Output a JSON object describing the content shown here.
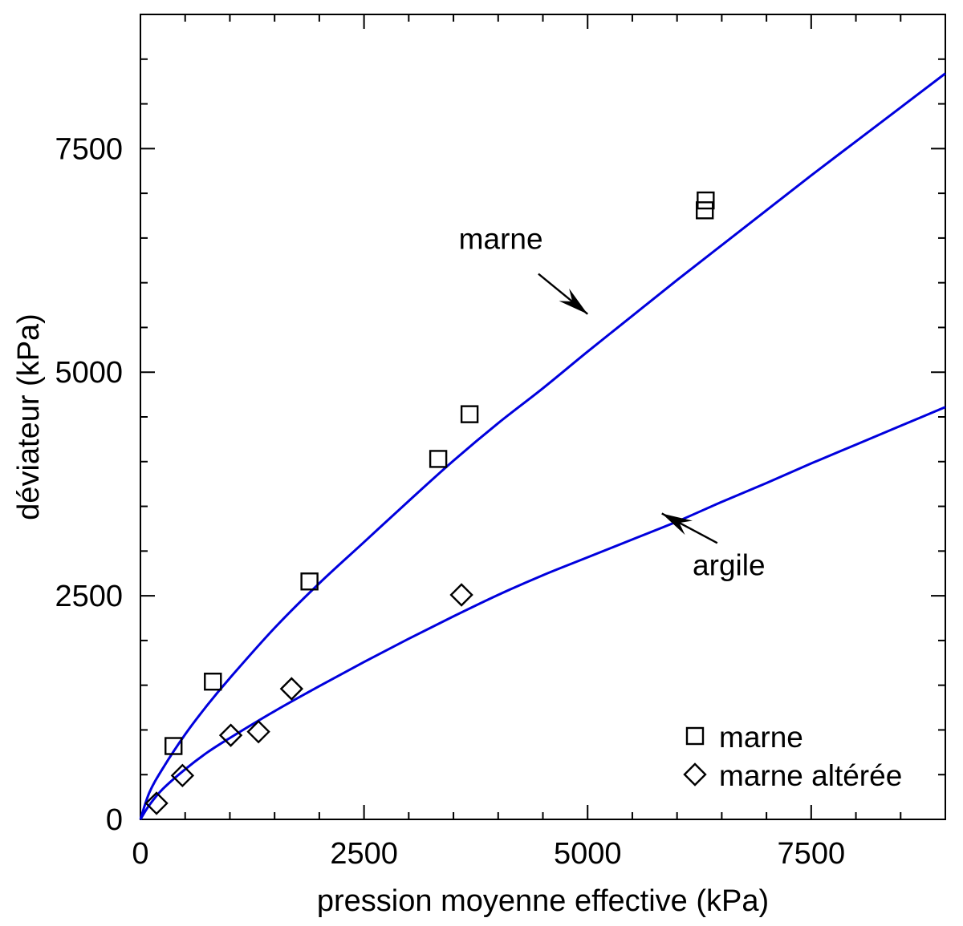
{
  "chart_data": {
    "type": "scatter",
    "title": "",
    "xlabel": "pression moyenne effective (kPa)",
    "ylabel": "déviateur (kPa)",
    "xlim": [
      0,
      9000
    ],
    "ylim": [
      0,
      9000
    ],
    "x_ticks": [
      0,
      2500,
      5000,
      7500
    ],
    "y_ticks": [
      0,
      2500,
      5000,
      7500
    ],
    "x_tick_labels": [
      "0",
      "2500",
      "5000",
      "7500"
    ],
    "y_tick_labels": [
      "0",
      "2500",
      "5000",
      "7500"
    ],
    "minor_tick_step": 500,
    "grid": false,
    "legend_position": "bottom-right",
    "series": [
      {
        "name": "marne",
        "marker": "square",
        "x": [
          370,
          810,
          1890,
          3330,
          3680,
          6310,
          6320
        ],
        "y": [
          820,
          1540,
          2660,
          4030,
          4530,
          6810,
          6920
        ]
      },
      {
        "name": "marne altérée",
        "marker": "diamond",
        "x": [
          180,
          470,
          1010,
          1320,
          1690,
          3590
        ],
        "y": [
          180,
          490,
          940,
          980,
          1460,
          2510
        ]
      }
    ],
    "curves": [
      {
        "name": "marne",
        "color": "#0000dd",
        "x": [
          0,
          100,
          250,
          500,
          750,
          1000,
          1500,
          2000,
          2500,
          3000,
          3500,
          4000,
          4500,
          5000,
          5500,
          6000,
          6500,
          7000,
          7500,
          8000,
          8500,
          9000
        ],
        "y": [
          0,
          300,
          570,
          950,
          1280,
          1580,
          2140,
          2640,
          3100,
          3560,
          4010,
          4430,
          4820,
          5230,
          5630,
          6030,
          6420,
          6810,
          7200,
          7580,
          7960,
          8340
        ]
      },
      {
        "name": "argile",
        "color": "#0000dd",
        "x": [
          0,
          100,
          250,
          500,
          750,
          1000,
          1500,
          2000,
          2500,
          3000,
          3500,
          4000,
          4500,
          5000,
          5500,
          6000,
          6500,
          7000,
          7500,
          8000,
          8500,
          9000
        ],
        "y": [
          0,
          160,
          340,
          560,
          750,
          910,
          1210,
          1490,
          1760,
          2020,
          2270,
          2510,
          2730,
          2930,
          3130,
          3330,
          3550,
          3760,
          3980,
          4190,
          4400,
          4610
        ]
      }
    ],
    "annotations": [
      {
        "text": "marne",
        "label_x": 4030,
        "label_y": 6380,
        "arrow_from": [
          4450,
          6100
        ],
        "arrow_to": [
          5000,
          5650
        ]
      },
      {
        "text": "argile",
        "label_x": 6580,
        "label_y": 2730,
        "arrow_from": [
          6450,
          3090
        ],
        "arrow_to": [
          5830,
          3420
        ]
      }
    ]
  }
}
